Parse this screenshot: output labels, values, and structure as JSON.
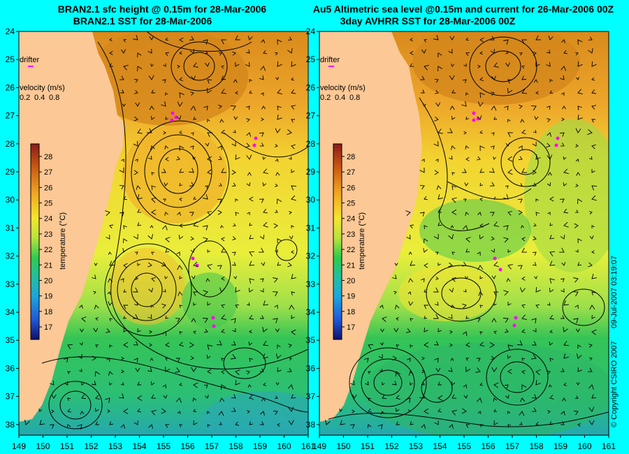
{
  "panels": [
    {
      "title_line1": "BRAN2.1 sfc height @ 0.15m for 28-Mar-2006",
      "title_line2": "BRAN2.1 SST for 28-Mar-2006",
      "latitude_ticks": [
        "24",
        "25",
        "26",
        "27",
        "28",
        "29",
        "30",
        "31",
        "32",
        "33",
        "34",
        "35",
        "36",
        "37",
        "38"
      ],
      "longitude_ticks": [
        "149",
        "150",
        "151",
        "152",
        "153",
        "154",
        "155",
        "156",
        "157",
        "158",
        "159",
        "160",
        "161"
      ],
      "drifter_label": "drifter",
      "velocity_label": "velocity (m/s)",
      "velocity_scale": [
        "0.2",
        "0.4",
        "0.8"
      ],
      "colorbar_label": "temperature (°C)",
      "colorbar_ticks": [
        "28",
        "27",
        "26",
        "25",
        "24",
        "23",
        "22",
        "21",
        "20",
        "19",
        "18",
        "17"
      ]
    },
    {
      "title_line1": "Au5 Altimetric sea level  @0.15m and current for 26-Mar-2006 00Z",
      "title_line2": "3day AVHRR SST for 28-Mar-2006 00Z",
      "latitude_ticks": [
        "24",
        "25",
        "26",
        "27",
        "28",
        "29",
        "30",
        "31",
        "32",
        "33",
        "34",
        "35",
        "36",
        "37",
        "38"
      ],
      "longitude_ticks": [
        "149",
        "150",
        "151",
        "152",
        "153",
        "154",
        "155",
        "156",
        "157",
        "158",
        "159",
        "160",
        "161"
      ],
      "drifter_label": "drifter",
      "velocity_label": "velocity (m/s)",
      "velocity_scale": [
        "0.2",
        "0.4",
        "0.8"
      ],
      "colorbar_label": "temperature (°C)",
      "colorbar_ticks": [
        "28",
        "27",
        "26",
        "25",
        "24",
        "23",
        "22",
        "21",
        "20",
        "19",
        "18",
        "17"
      ]
    }
  ],
  "copyright": "© Copyright CSIRO 2007",
  "timestamp": "09-Jul-2007 03:19:07",
  "colors": {
    "background": "#00ffff",
    "land": "#fbc896",
    "warm": "#d68a1a",
    "mid": "#f4e62a",
    "cool": "#27c45a",
    "cold": "#1da8a8",
    "drifter": "#ff00ff"
  }
}
